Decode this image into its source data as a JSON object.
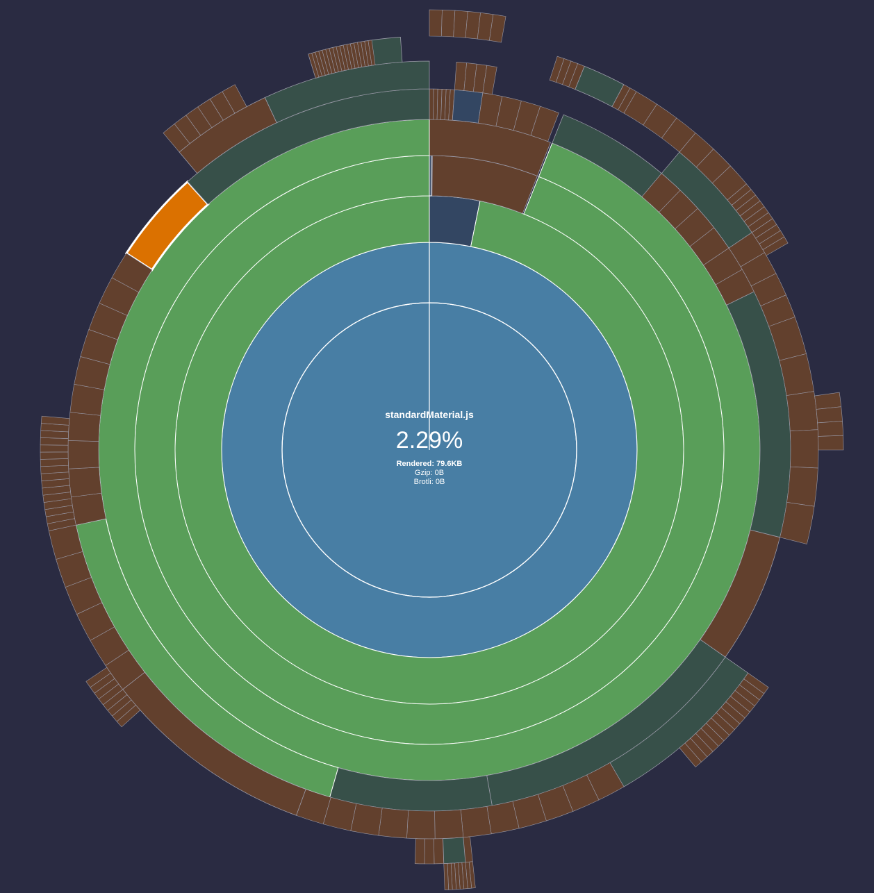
{
  "center": {
    "name": "standardMaterial.js",
    "percentage": "2.29%",
    "rendered": "Rendered: 79.6KB",
    "gzip": "Gzip: 0B",
    "brotli": "Brotli: 0B"
  },
  "colors": {
    "background": "#2a2b42",
    "root": "#487ea4",
    "directory": "#599e59",
    "node_modules": "#375049",
    "node_modules_alt": "#334662",
    "file": "#62402d",
    "highlight": "#db7100",
    "separator": "#ffffff",
    "outer_separator": "#9a9aa8"
  },
  "chart_data": {
    "type": "sunburst",
    "selected": "standardMaterial.js",
    "selected_share_percent": 2.29
  }
}
